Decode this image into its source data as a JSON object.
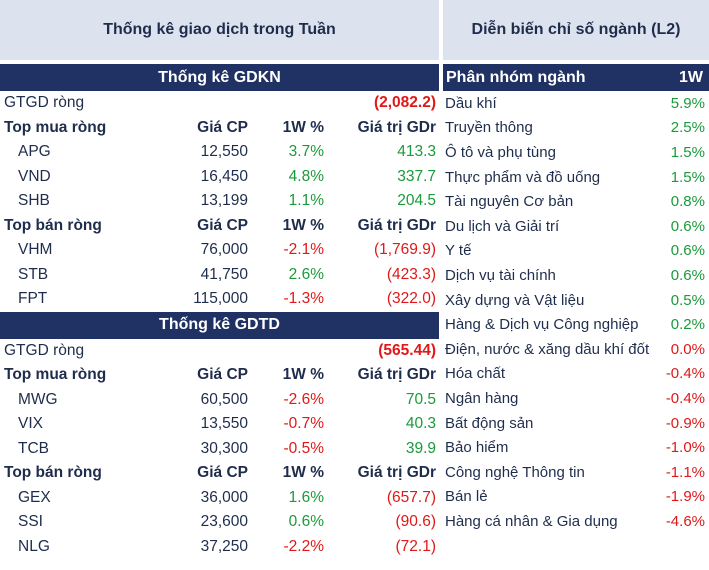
{
  "left": {
    "title": "Thống kê giao dịch trong Tuần",
    "gdkn": {
      "band": "Thống kê GDKN",
      "net_label": "GTGD ròng",
      "net_value": "(2,082.2)",
      "buy_header": {
        "name": "Top mua ròng",
        "price": "Giá CP",
        "pct": "1W %",
        "val": "Giá trị GDr"
      },
      "buy": [
        {
          "name": "APG",
          "price": "12,550",
          "pct": "3.7%",
          "val": "413.3"
        },
        {
          "name": "VND",
          "price": "16,450",
          "pct": "4.8%",
          "val": "337.7"
        },
        {
          "name": "SHB",
          "price": "13,199",
          "pct": "1.1%",
          "val": "204.5"
        }
      ],
      "sell_header": {
        "name": "Top bán ròng",
        "price": "Giá CP",
        "pct": "1W %",
        "val": "Giá trị GDr"
      },
      "sell": [
        {
          "name": "VHM",
          "price": "76,000",
          "pct": "-2.1%",
          "val": "(1,769.9)"
        },
        {
          "name": "STB",
          "price": "41,750",
          "pct": "2.6%",
          "val": "(423.3)"
        },
        {
          "name": "FPT",
          "price": "115,000",
          "pct": "-1.3%",
          "val": "(322.0)"
        }
      ]
    },
    "gdtd": {
      "band": "Thống kê GDTD",
      "net_label": "GTGD ròng",
      "net_value": "(565.44)",
      "buy_header": {
        "name": "Top mua ròng",
        "price": "Giá CP",
        "pct": "1W %",
        "val": "Giá trị GDr"
      },
      "buy": [
        {
          "name": "MWG",
          "price": "60,500",
          "pct": "-2.6%",
          "val": "70.5"
        },
        {
          "name": "VIX",
          "price": "13,550",
          "pct": "-0.7%",
          "val": "40.3"
        },
        {
          "name": "TCB",
          "price": "30,300",
          "pct": "-0.5%",
          "val": "39.9"
        }
      ],
      "sell_header": {
        "name": "Top bán ròng",
        "price": "Giá CP",
        "pct": "1W %",
        "val": "Giá trị GDr"
      },
      "sell": [
        {
          "name": "GEX",
          "price": "36,000",
          "pct": "1.6%",
          "val": "(657.7)"
        },
        {
          "name": "SSI",
          "price": "23,600",
          "pct": "0.6%",
          "val": "(90.6)"
        },
        {
          "name": "NLG",
          "price": "37,250",
          "pct": "-2.2%",
          "val": "(72.1)"
        }
      ]
    }
  },
  "right": {
    "title": "Diễn biến chỉ số ngành (L2)",
    "header": {
      "name": "Phân nhóm ngành",
      "pct": "1W"
    },
    "sectors": [
      {
        "name": "Dầu khí",
        "pct": "5.9%"
      },
      {
        "name": "Truyền thông",
        "pct": "2.5%"
      },
      {
        "name": "Ô tô và phụ tùng",
        "pct": "1.5%"
      },
      {
        "name": "Thực phẩm và đồ uống",
        "pct": "1.5%"
      },
      {
        "name": "Tài nguyên Cơ bản",
        "pct": "0.8%"
      },
      {
        "name": "Du lịch và Giải trí",
        "pct": "0.6%"
      },
      {
        "name": "Y tế",
        "pct": "0.6%"
      },
      {
        "name": "Dịch vụ tài chính",
        "pct": "0.6%"
      },
      {
        "name": "Xây dựng và Vật liệu",
        "pct": "0.5%"
      },
      {
        "name": "Hàng & Dịch vụ Công nghiệp",
        "pct": "0.2%"
      },
      {
        "name": "Điện, nước & xăng dầu khí đốt",
        "pct": "0.0%"
      },
      {
        "name": "Hóa chất",
        "pct": "-0.4%"
      },
      {
        "name": "Ngân hàng",
        "pct": "-0.4%"
      },
      {
        "name": "Bất động sản",
        "pct": "-0.9%"
      },
      {
        "name": "Bảo hiểm",
        "pct": "-1.0%"
      },
      {
        "name": "Công nghệ Thông tin",
        "pct": "-1.1%"
      },
      {
        "name": "Bán lẻ",
        "pct": "-1.9%"
      },
      {
        "name": "Hàng cá nhân & Gia dụng",
        "pct": "-4.6%"
      }
    ],
    "colors": {
      "positive": "#1a9b3a",
      "negative": "#e01818",
      "neutral": "#1f2d4d"
    }
  }
}
